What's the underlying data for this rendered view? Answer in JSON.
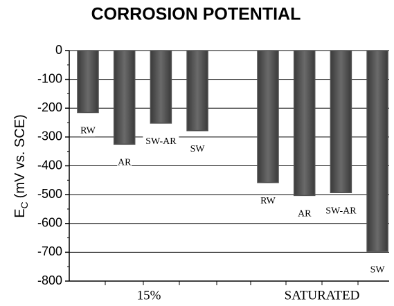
{
  "chart_data": {
    "type": "bar",
    "title": "CORROSION POTENTIAL",
    "ylabel": [
      "E",
      "C",
      "(mV vs. SCE)"
    ],
    "categories": [
      "15%",
      "SATURATED"
    ],
    "series": [
      {
        "name": "RW",
        "color": "#505050",
        "values": [
          -215,
          -458
        ]
      },
      {
        "name": "AR",
        "color": "#505050",
        "values": [
          -325,
          -503
        ]
      },
      {
        "name": "SW-AR",
        "color": "#505050",
        "values": [
          -252,
          -493
        ]
      },
      {
        "name": "SW",
        "color": "#505050",
        "values": [
          -278,
          -697
        ]
      }
    ],
    "ylim": [
      -800,
      0
    ],
    "yticks": [
      0,
      -100,
      -200,
      -300,
      -400,
      -500,
      -600,
      -700,
      -800
    ],
    "grid": true
  }
}
